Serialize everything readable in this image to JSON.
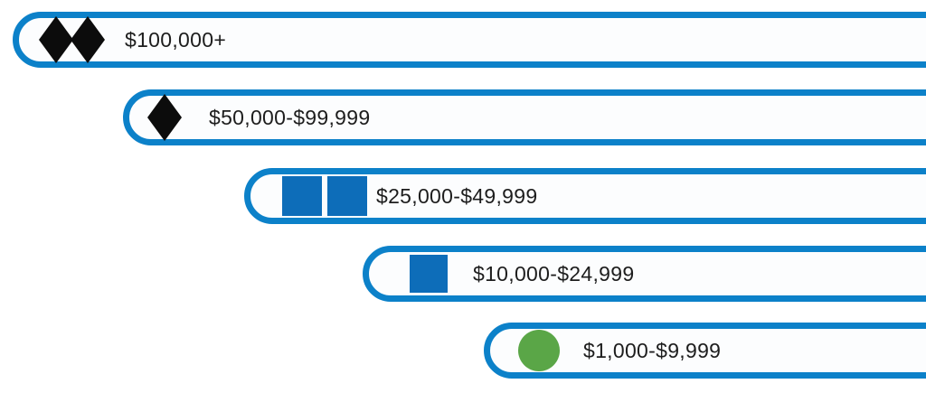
{
  "graphic": {
    "description": "Giving levels styled as ski-trail difficulty markers in staggered blue capsule bars"
  },
  "tiers": [
    {
      "label": "$100,000+",
      "difficulty_icon": "double-black-diamond",
      "icon_shape": "diamond",
      "icon_count": 2,
      "icon_color": "#0c0c0c"
    },
    {
      "label": "$50,000-$99,999",
      "difficulty_icon": "black-diamond",
      "icon_shape": "diamond",
      "icon_count": 1,
      "icon_color": "#0c0c0c"
    },
    {
      "label": "$25,000-$49,999",
      "difficulty_icon": "double-blue-square",
      "icon_shape": "square",
      "icon_count": 2,
      "icon_color": "#0d6db9"
    },
    {
      "label": "$10,000-$24,999",
      "difficulty_icon": "blue-square",
      "icon_shape": "square",
      "icon_count": 1,
      "icon_color": "#0d6db9"
    },
    {
      "label": "$1,000-$9,999",
      "difficulty_icon": "green-circle",
      "icon_shape": "circle",
      "icon_count": 1,
      "icon_color": "#5aa647"
    }
  ],
  "colors": {
    "background": "#ffffff",
    "border_blue": "#0c81c9",
    "square_blue": "#0d6db9",
    "diamond_black": "#0c0c0c",
    "circle_green": "#5aa647",
    "text": "#1d1d1d",
    "pill_fill": "#fcfdfe"
  }
}
